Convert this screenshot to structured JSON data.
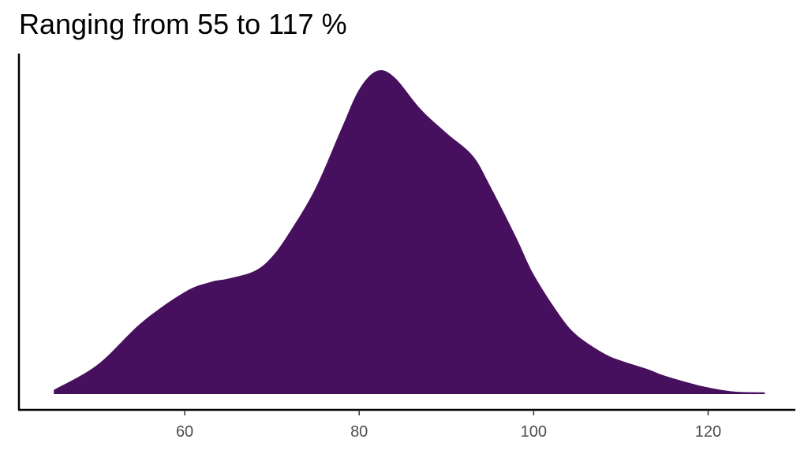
{
  "chart_data": {
    "type": "area",
    "title": "Ranging from 55 to 117 %",
    "xlabel": "",
    "ylabel": "",
    "xlim": [
      41,
      130
    ],
    "ylim": [
      0,
      0.0388
    ],
    "x_ticks": [
      60,
      80,
      100,
      120
    ],
    "grid": false,
    "fill_color": "#46105E",
    "axis_color": "#000000",
    "x": [
      45,
      50,
      55,
      60,
      63,
      65,
      68,
      70,
      72,
      75,
      78,
      80,
      82,
      84,
      87,
      90,
      93,
      95,
      98,
      100,
      103,
      105,
      108,
      110,
      113,
      115,
      118,
      120,
      123,
      126.5
    ],
    "y": [
      0.0005,
      0.0035,
      0.0085,
      0.0122,
      0.0134,
      0.0138,
      0.0147,
      0.0164,
      0.0193,
      0.0246,
      0.0318,
      0.0364,
      0.0386,
      0.0379,
      0.0341,
      0.0312,
      0.0285,
      0.0249,
      0.0187,
      0.0143,
      0.0094,
      0.007,
      0.0049,
      0.004,
      0.003,
      0.0022,
      0.0013,
      0.0008,
      0.0003,
      0.0002
    ]
  }
}
